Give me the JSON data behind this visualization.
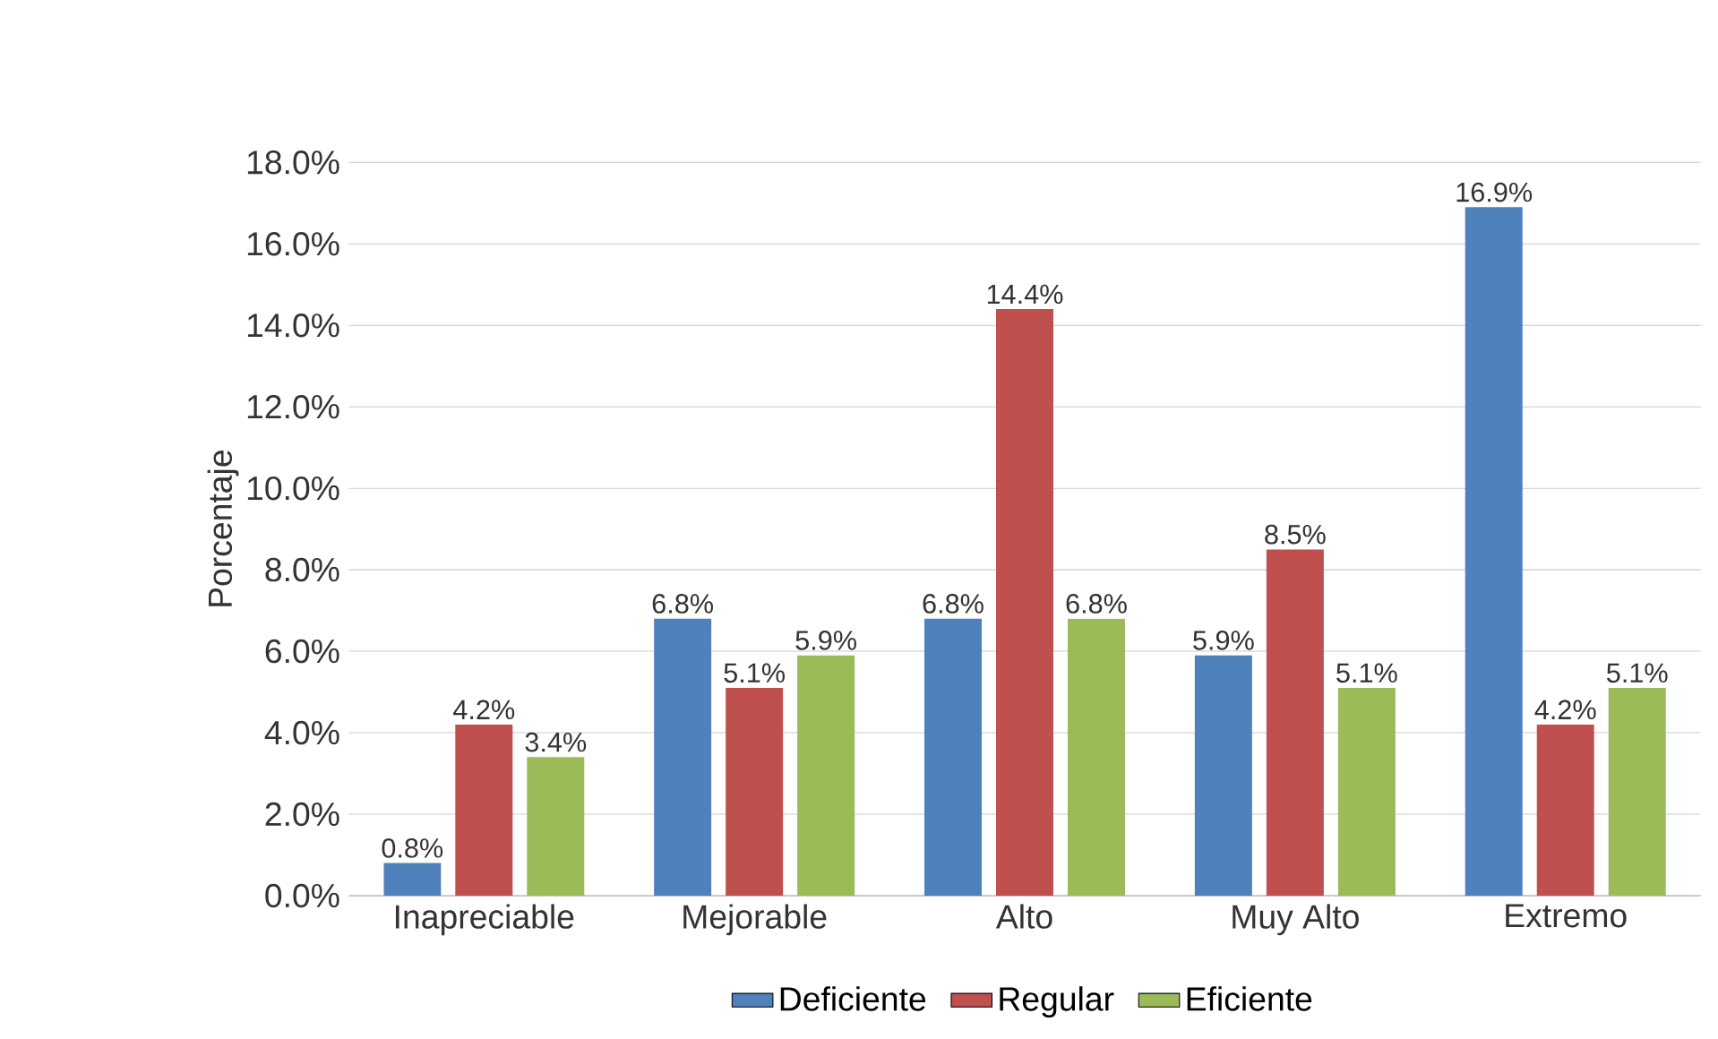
{
  "chart_data": {
    "type": "bar",
    "ylabel": "Porcentaje",
    "categories": [
      "Inapreciable",
      "Mejorable",
      "Alto",
      "Muy Alto",
      "Extremo"
    ],
    "series": [
      {
        "name": "Deficiente",
        "color": "#4f81bd",
        "values": [
          0.8,
          6.8,
          6.8,
          5.9,
          16.9
        ],
        "value_labels": [
          "0.8%",
          "6.8%",
          "6.8%",
          "5.9%",
          "16.9%"
        ]
      },
      {
        "name": "Regular",
        "color": "#c0504d",
        "values": [
          4.2,
          5.1,
          14.4,
          8.5,
          4.2
        ],
        "value_labels": [
          "4.2%",
          "5.1%",
          "14.4%",
          "8.5%",
          "4.2%"
        ]
      },
      {
        "name": "Eficiente",
        "color": "#9bbb59",
        "values": [
          3.4,
          5.9,
          6.8,
          5.1,
          5.1
        ],
        "value_labels": [
          "3.4%",
          "5.9%",
          "6.8%",
          "5.1%",
          "5.1%"
        ]
      }
    ],
    "ylim": [
      0,
      18
    ],
    "yticks": [
      {
        "value": 0,
        "label": "0.0%"
      },
      {
        "value": 2,
        "label": "2.0%"
      },
      {
        "value": 4,
        "label": "4.0%"
      },
      {
        "value": 6,
        "label": "6.0%"
      },
      {
        "value": 8,
        "label": "8.0%"
      },
      {
        "value": 10,
        "label": "10.0%"
      },
      {
        "value": 12,
        "label": "12.0%"
      },
      {
        "value": 14,
        "label": "14.0%"
      },
      {
        "value": 16,
        "label": "16.0%"
      },
      {
        "value": 18,
        "label": "18.0%"
      }
    ],
    "grid": "y",
    "legend": "bottom"
  }
}
